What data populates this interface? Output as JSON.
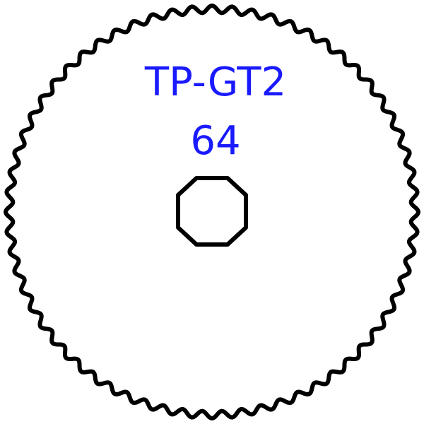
{
  "gear": {
    "name": "TP-GT2",
    "teeth": "64",
    "outline_color": "#000000",
    "text_color": "#1a1aff",
    "background_color": "#ffffff"
  }
}
